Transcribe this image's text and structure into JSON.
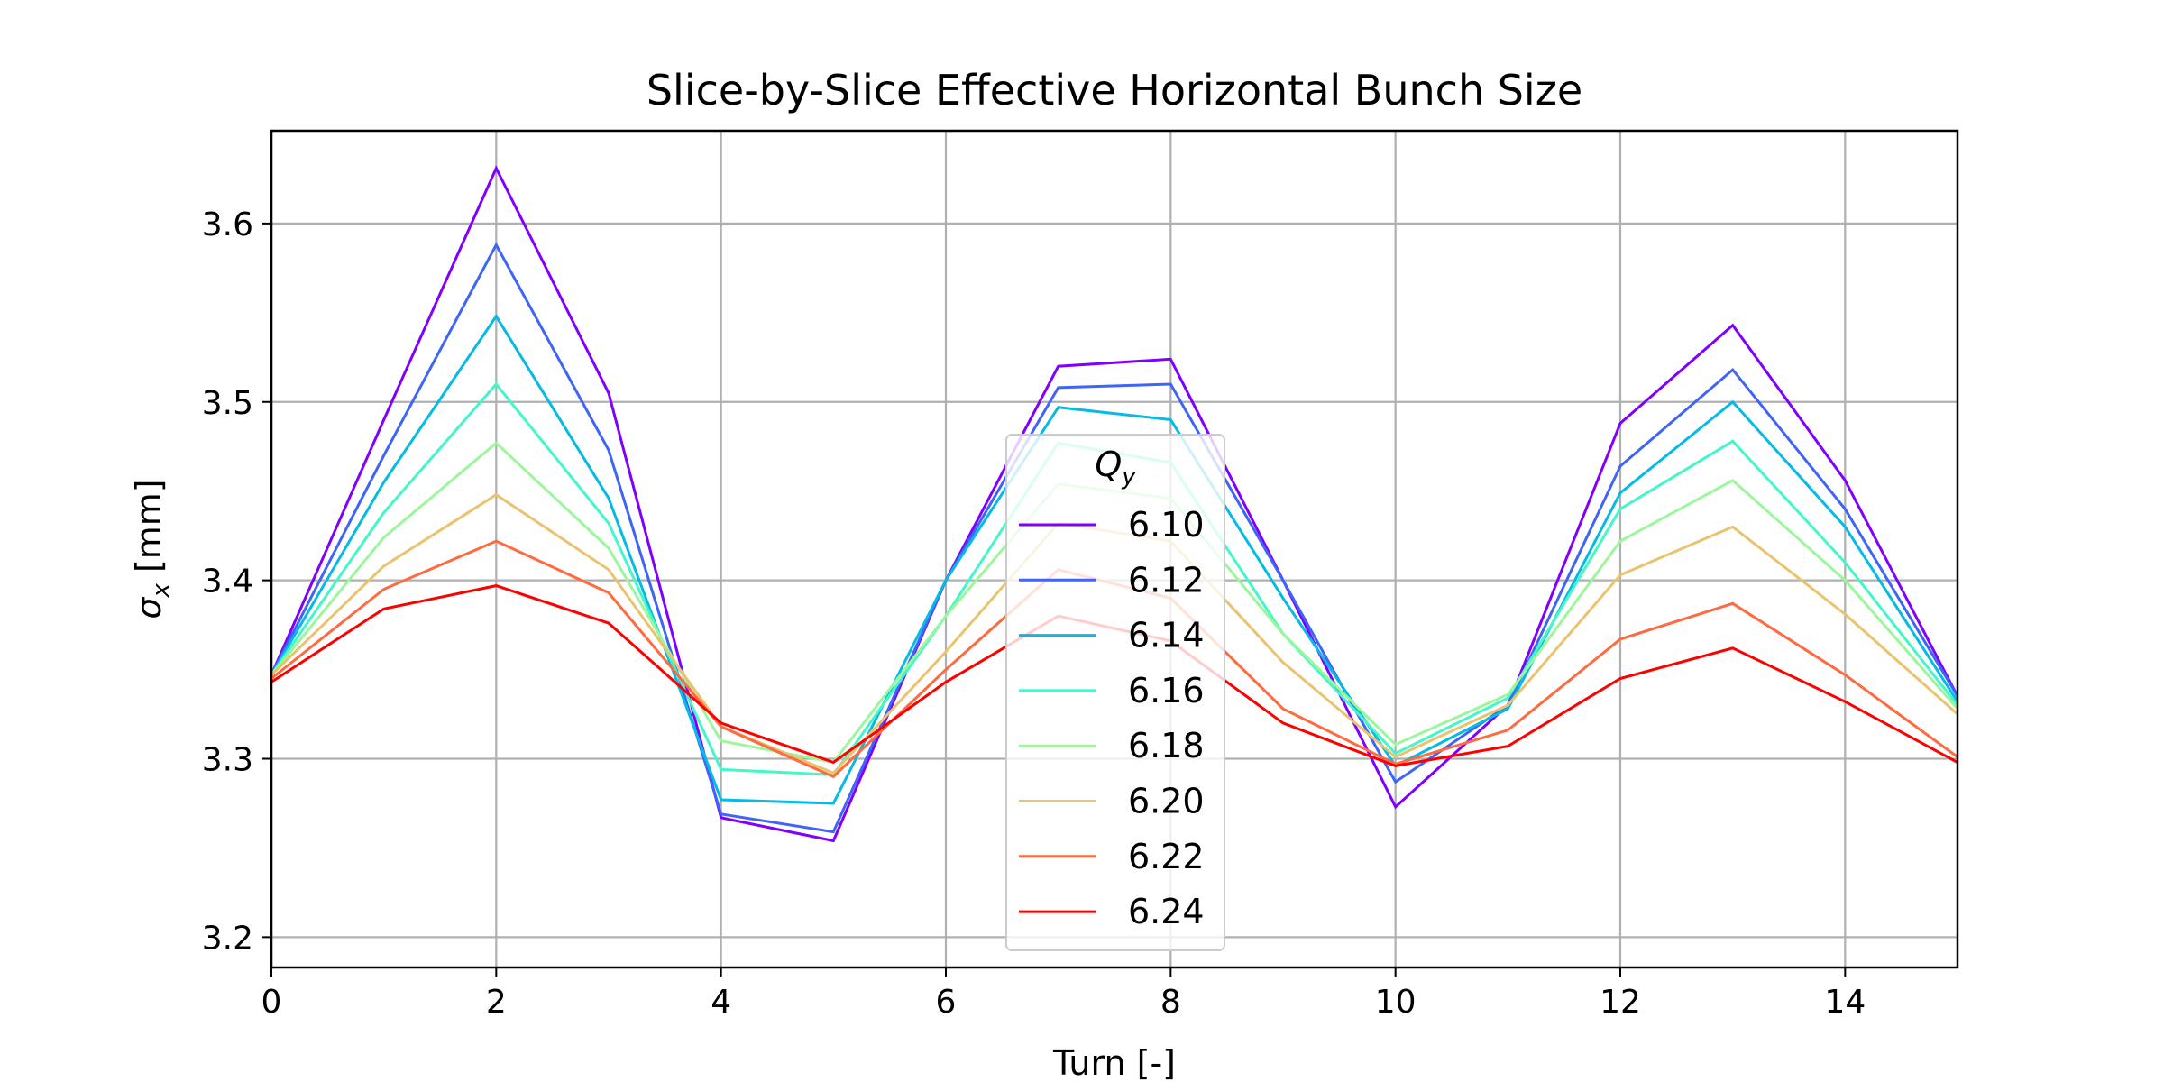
{
  "chart_data": {
    "type": "line",
    "title": "Slice-by-Slice Effective Horizontal Bunch Size",
    "xlabel": "Turn [-]",
    "ylabel": "σx [mm]",
    "xlim": [
      0,
      15
    ],
    "ylim": [
      3.183,
      3.652
    ],
    "xticks": [
      0,
      2,
      4,
      6,
      8,
      10,
      12,
      14
    ],
    "yticks": [
      3.2,
      3.3,
      3.4,
      3.5,
      3.6
    ],
    "grid": true,
    "legend": {
      "title": "Qy",
      "placement": "center"
    },
    "x": [
      0,
      1,
      2,
      3,
      4,
      5,
      6,
      7,
      8,
      9,
      10,
      11,
      12,
      13,
      14,
      15
    ],
    "series": [
      {
        "name": "6.10",
        "color": "#8000ff",
        "values": [
          3.347,
          3.49,
          3.631,
          3.505,
          3.267,
          3.254,
          3.4,
          3.52,
          3.524,
          3.4,
          3.273,
          3.33,
          3.488,
          3.543,
          3.456,
          3.335
        ]
      },
      {
        "name": "6.12",
        "color": "#3f64f8",
        "values": [
          3.347,
          3.47,
          3.588,
          3.473,
          3.269,
          3.259,
          3.4,
          3.508,
          3.51,
          3.4,
          3.287,
          3.33,
          3.464,
          3.518,
          3.44,
          3.335
        ]
      },
      {
        "name": "6.14",
        "color": "#04bbe5",
        "values": [
          3.347,
          3.455,
          3.548,
          3.446,
          3.277,
          3.275,
          3.4,
          3.497,
          3.49,
          3.39,
          3.296,
          3.328,
          3.449,
          3.5,
          3.43,
          3.332
        ]
      },
      {
        "name": "6.16",
        "color": "#42f7c8",
        "values": [
          3.347,
          3.438,
          3.51,
          3.432,
          3.294,
          3.291,
          3.38,
          3.477,
          3.466,
          3.37,
          3.303,
          3.334,
          3.44,
          3.478,
          3.41,
          3.33
        ]
      },
      {
        "name": "6.18",
        "color": "#9cf69b",
        "values": [
          3.347,
          3.424,
          3.477,
          3.418,
          3.31,
          3.298,
          3.38,
          3.454,
          3.446,
          3.37,
          3.308,
          3.336,
          3.422,
          3.456,
          3.4,
          3.328
        ]
      },
      {
        "name": "6.20",
        "color": "#e9c36e",
        "values": [
          3.347,
          3.408,
          3.448,
          3.406,
          3.318,
          3.292,
          3.36,
          3.432,
          3.422,
          3.354,
          3.301,
          3.33,
          3.403,
          3.43,
          3.381,
          3.325
        ]
      },
      {
        "name": "6.22",
        "color": "#ff6b41",
        "values": [
          3.345,
          3.395,
          3.422,
          3.393,
          3.318,
          3.29,
          3.35,
          3.406,
          3.39,
          3.328,
          3.297,
          3.316,
          3.367,
          3.387,
          3.347,
          3.301
        ]
      },
      {
        "name": "6.24",
        "color": "#ff0000",
        "values": [
          3.343,
          3.384,
          3.397,
          3.376,
          3.32,
          3.298,
          3.343,
          3.38,
          3.366,
          3.32,
          3.296,
          3.307,
          3.345,
          3.362,
          3.332,
          3.298
        ]
      }
    ]
  }
}
